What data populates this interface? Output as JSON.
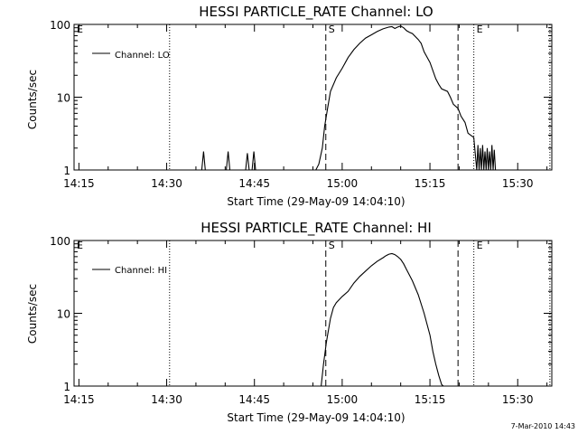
{
  "footer": {
    "timestamp": "7-Mar-2010 14:43"
  },
  "chart_data": [
    {
      "type": "line",
      "title": "HESSI PARTICLE_RATE Channel: LO",
      "xlabel": "Start Time (29-May-09 14:04:10)",
      "ylabel": "Counts/sec",
      "yscale": "log",
      "ylim": [
        1,
        100
      ],
      "xlim_minutes": [
        14.17,
        95.83
      ],
      "x_ticks": [
        "14:15",
        "14:30",
        "14:45",
        "15:00",
        "15:15",
        "15:30"
      ],
      "y_ticks": [
        "1",
        "10",
        "100"
      ],
      "legend": "Channel: LO",
      "legend_position": "top-left",
      "markers": [
        {
          "label": "E",
          "minute": 14.17,
          "style": "none"
        },
        {
          "label": "",
          "minute": 30.5,
          "style": "dotted"
        },
        {
          "label": "S",
          "minute": 57.2,
          "style": "dashed"
        },
        {
          "label": "",
          "minute": 79.8,
          "style": "dashed"
        },
        {
          "label": "E",
          "minute": 82.5,
          "style": "dotted"
        },
        {
          "label": "",
          "minute": 95.5,
          "style": "dotted"
        }
      ],
      "series": [
        {
          "name": "Channel: LO",
          "x": [
            14.17,
            26.3,
            36.0,
            36.3,
            36.6,
            40.2,
            40.5,
            40.8,
            43.5,
            43.8,
            44.1,
            44.6,
            44.9,
            45.2,
            55.5,
            56.0,
            56.6,
            57.0,
            57.5,
            58.0,
            59.0,
            60.0,
            61.0,
            62.0,
            63.0,
            64.0,
            65.0,
            66.0,
            67.0,
            68.0,
            68.5,
            69.0,
            69.5,
            70.0,
            70.5,
            71.0,
            71.5,
            72.0,
            73.0,
            73.5,
            74.0,
            75.0,
            76.0,
            76.5,
            77.0,
            78.0,
            78.5,
            79.0,
            79.8,
            80.3,
            81.0,
            81.5,
            82.5,
            83.0,
            83.2,
            83.4,
            83.6,
            83.8,
            84.0,
            84.2,
            84.4,
            84.6,
            84.8,
            85.0,
            85.2,
            85.4,
            85.6,
            85.8,
            86.0,
            86.2,
            86.4
          ],
          "values": [
            1,
            1,
            1,
            1.8,
            1,
            1,
            1.8,
            1,
            1,
            1.7,
            1,
            1,
            1.8,
            1,
            1,
            1.2,
            2.0,
            4.0,
            7.0,
            12.0,
            18.5,
            25.0,
            35.0,
            45.0,
            55.0,
            65.0,
            72.0,
            80.0,
            87.0,
            92.0,
            93.0,
            88.0,
            92.0,
            95.0,
            90.0,
            82.0,
            78.0,
            75.0,
            62.0,
            55.0,
            42.0,
            30.0,
            18.0,
            15.0,
            13.0,
            12.0,
            10.0,
            8.0,
            7.0,
            5.5,
            4.5,
            3.2,
            2.8,
            1,
            2.2,
            1,
            2.0,
            1,
            2.2,
            1,
            1.8,
            1,
            2.0,
            1,
            1.8,
            1,
            2.2,
            1,
            1.9,
            1,
            1
          ]
        }
      ]
    },
    {
      "type": "line",
      "title": "HESSI PARTICLE_RATE Channel: HI",
      "xlabel": "Start Time (29-May-09 14:04:10)",
      "ylabel": "Counts/sec",
      "yscale": "log",
      "ylim": [
        1,
        100
      ],
      "xlim_minutes": [
        14.17,
        95.83
      ],
      "x_ticks": [
        "14:15",
        "14:30",
        "14:45",
        "15:00",
        "15:15",
        "15:30"
      ],
      "y_ticks": [
        "1",
        "10",
        "100"
      ],
      "legend": "Channel: HI",
      "legend_position": "top-left",
      "markers": [
        {
          "label": "E",
          "minute": 14.17,
          "style": "none"
        },
        {
          "label": "",
          "minute": 30.5,
          "style": "dotted"
        },
        {
          "label": "S",
          "minute": 57.2,
          "style": "dashed"
        },
        {
          "label": "",
          "minute": 79.8,
          "style": "dashed"
        },
        {
          "label": "E",
          "minute": 82.5,
          "style": "dotted"
        },
        {
          "label": "",
          "minute": 95.5,
          "style": "dotted"
        }
      ],
      "series": [
        {
          "name": "Channel: HI",
          "x": [
            56.4,
            56.8,
            57.3,
            58.0,
            58.5,
            59.0,
            60.0,
            61.0,
            62.0,
            63.0,
            64.0,
            65.0,
            66.0,
            67.0,
            67.5,
            68.0,
            68.5,
            69.0,
            69.5,
            70.0,
            70.5,
            71.0,
            72.0,
            73.0,
            74.0,
            75.0,
            75.5,
            76.0,
            76.5,
            77.0,
            77.3
          ],
          "values": [
            1,
            2.0,
            4.0,
            8.5,
            12.0,
            14.0,
            17.0,
            20.0,
            26.0,
            32.0,
            38.0,
            45.0,
            52.0,
            58.0,
            62.0,
            65.0,
            66.0,
            64.0,
            60.0,
            55.0,
            48.0,
            40.0,
            28.0,
            18.0,
            10.0,
            5.0,
            3.0,
            2.0,
            1.4,
            1.05,
            1
          ]
        }
      ]
    }
  ]
}
